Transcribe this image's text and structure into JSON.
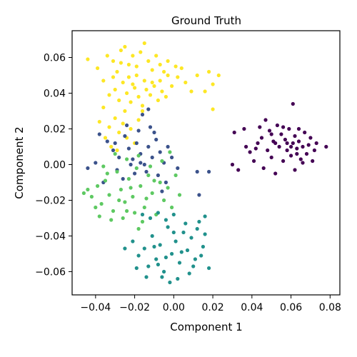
{
  "chart_data": {
    "type": "scatter",
    "title": "Ground Truth",
    "xlabel": "Component 1",
    "ylabel": "Component 2",
    "xlim": [
      -0.052,
      0.085
    ],
    "ylim": [
      -0.073,
      0.075
    ],
    "xticks": [
      -0.04,
      -0.02,
      0.0,
      0.02,
      0.04,
      0.06,
      0.08
    ],
    "xtick_labels": [
      "−0.04",
      "−0.02",
      "0.00",
      "0.02",
      "0.04",
      "0.06",
      "0.08"
    ],
    "yticks": [
      -0.06,
      -0.04,
      -0.02,
      0.0,
      0.02,
      0.04,
      0.06
    ],
    "ytick_labels": [
      "−0.06",
      "−0.04",
      "−0.02",
      "0.00",
      "0.02",
      "0.04",
      "0.06"
    ],
    "grid": false,
    "legend": "none",
    "series": [
      {
        "color": "#fde725",
        "points": [
          [
            -0.044,
            0.059
          ],
          [
            -0.039,
            0.054
          ],
          [
            -0.036,
            0.047
          ],
          [
            -0.034,
            0.061
          ],
          [
            -0.031,
            0.058
          ],
          [
            -0.029,
            0.052
          ],
          [
            -0.027,
            0.064
          ],
          [
            -0.025,
            0.066
          ],
          [
            -0.023,
            0.056
          ],
          [
            -0.021,
            0.061
          ],
          [
            -0.019,
            0.05
          ],
          [
            -0.017,
            0.063
          ],
          [
            -0.015,
            0.068
          ],
          [
            -0.013,
            0.058
          ],
          [
            -0.011,
            0.053
          ],
          [
            -0.009,
            0.061
          ],
          [
            -0.007,
            0.047
          ],
          [
            -0.005,
            0.052
          ],
          [
            -0.003,
            0.058
          ],
          [
            -0.001,
            0.044
          ],
          [
            0.002,
            0.049
          ],
          [
            0.004,
            0.054
          ],
          [
            0.006,
            0.046
          ],
          [
            0.009,
            0.041
          ],
          [
            0.012,
            0.05
          ],
          [
            0.016,
            0.041
          ],
          [
            0.02,
            0.045
          ],
          [
            0.023,
            0.05
          ],
          [
            0.02,
            0.031
          ],
          [
            0.018,
            0.052
          ],
          [
            -0.033,
            0.039
          ],
          [
            -0.03,
            0.042
          ],
          [
            -0.028,
            0.036
          ],
          [
            -0.026,
            0.046
          ],
          [
            -0.024,
            0.04
          ],
          [
            -0.022,
            0.035
          ],
          [
            -0.02,
            0.043
          ],
          [
            -0.018,
            0.038
          ],
          [
            -0.016,
            0.033
          ],
          [
            -0.014,
            0.042
          ],
          [
            -0.012,
            0.039
          ],
          [
            -0.01,
            0.044
          ],
          [
            -0.008,
            0.036
          ],
          [
            -0.006,
            0.041
          ],
          [
            -0.004,
            0.038
          ],
          [
            -0.036,
            0.032
          ],
          [
            -0.038,
            0.024
          ],
          [
            -0.033,
            0.021
          ],
          [
            -0.03,
            0.026
          ],
          [
            -0.028,
            0.018
          ],
          [
            -0.026,
            0.023
          ],
          [
            -0.024,
            0.015
          ],
          [
            -0.022,
            0.02
          ],
          [
            -0.02,
            0.012
          ],
          [
            -0.032,
            0.01
          ],
          [
            -0.029,
            0.008
          ],
          [
            -0.035,
            0.015
          ],
          [
            -0.018,
            0.025
          ],
          [
            -0.016,
            0.03
          ],
          [
            -0.025,
            0.03
          ],
          [
            -0.031,
            0.049
          ],
          [
            -0.027,
            0.057
          ],
          [
            -0.023,
            0.049
          ],
          [
            -0.019,
            0.055
          ],
          [
            -0.015,
            0.047
          ],
          [
            -0.011,
            0.046
          ],
          [
            -0.007,
            0.056
          ],
          [
            -0.003,
            0.05
          ],
          [
            0.001,
            0.055
          ],
          [
            -0.021,
            0.045
          ]
        ]
      },
      {
        "color": "#440154",
        "points": [
          [
            0.031,
            0.018
          ],
          [
            0.03,
            0.0
          ],
          [
            0.033,
            -0.003
          ],
          [
            0.036,
            0.02
          ],
          [
            0.039,
            0.007
          ],
          [
            0.041,
            0.002
          ],
          [
            0.043,
            0.012
          ],
          [
            0.045,
            0.015
          ],
          [
            0.046,
            -0.002
          ],
          [
            0.047,
            0.025
          ],
          [
            0.048,
            0.008
          ],
          [
            0.049,
            0.019
          ],
          [
            0.05,
            0.004
          ],
          [
            0.051,
            0.013
          ],
          [
            0.052,
            -0.005
          ],
          [
            0.053,
            0.022
          ],
          [
            0.054,
            0.01
          ],
          [
            0.055,
            0.017
          ],
          [
            0.056,
            0.002
          ],
          [
            0.057,
            0.014
          ],
          [
            0.058,
            0.008
          ],
          [
            0.059,
            0.02
          ],
          [
            0.06,
            0.005
          ],
          [
            0.061,
            0.012
          ],
          [
            0.062,
            0.016
          ],
          [
            0.062,
            -0.003
          ],
          [
            0.063,
            0.009
          ],
          [
            0.064,
            0.013
          ],
          [
            0.065,
            0.003
          ],
          [
            0.066,
            0.01
          ],
          [
            0.067,
            0.018
          ],
          [
            0.068,
            0.006
          ],
          [
            0.069,
            0.011
          ],
          [
            0.07,
            0.015
          ],
          [
            0.071,
            0.002
          ],
          [
            0.072,
            0.008
          ],
          [
            0.073,
            0.012
          ],
          [
            0.078,
            0.01
          ],
          [
            0.061,
            0.034
          ],
          [
            0.044,
            0.021
          ],
          [
            0.037,
            0.01
          ],
          [
            0.042,
            0.009
          ],
          [
            0.05,
            0.017
          ],
          [
            0.056,
            0.021
          ],
          [
            0.064,
            0.02
          ],
          [
            0.066,
            0.001
          ],
          [
            0.058,
            0.012
          ],
          [
            0.06,
            0.01
          ],
          [
            0.063,
            0.006
          ],
          [
            0.052,
            0.012
          ]
        ]
      },
      {
        "color": "#3b528b",
        "points": [
          [
            -0.038,
            0.017
          ],
          [
            -0.034,
            0.013
          ],
          [
            -0.031,
            0.008
          ],
          [
            -0.028,
            0.004
          ],
          [
            -0.025,
            0.016
          ],
          [
            -0.023,
            0.009
          ],
          [
            -0.021,
            0.003
          ],
          [
            -0.019,
            0.012
          ],
          [
            -0.017,
            0.006
          ],
          [
            -0.015,
            0.0
          ],
          [
            -0.013,
            0.01
          ],
          [
            -0.011,
            0.004
          ],
          [
            -0.009,
            0.014
          ],
          [
            -0.007,
            0.007
          ],
          [
            -0.005,
            0.001
          ],
          [
            -0.003,
            0.01
          ],
          [
            -0.001,
            0.004
          ],
          [
            0.002,
            -0.002
          ],
          [
            -0.024,
            0.022
          ],
          [
            -0.018,
            0.019
          ],
          [
            -0.012,
            0.021
          ],
          [
            -0.01,
            0.018
          ],
          [
            -0.029,
            -0.003
          ],
          [
            -0.026,
            -0.008
          ],
          [
            -0.02,
            -0.005
          ],
          [
            -0.014,
            -0.004
          ],
          [
            -0.008,
            -0.006
          ],
          [
            -0.004,
            -0.01
          ],
          [
            -0.04,
            0.001
          ],
          [
            -0.044,
            -0.002
          ],
          [
            -0.036,
            -0.01
          ],
          [
            -0.016,
            0.028
          ],
          [
            -0.013,
            0.031
          ],
          [
            0.012,
            -0.004
          ],
          [
            0.018,
            -0.004
          ],
          [
            0.013,
            -0.017
          ],
          [
            -0.006,
            -0.015
          ],
          [
            -0.022,
            0.0
          ],
          [
            -0.03,
            0.012
          ],
          [
            -0.017,
            0.001
          ]
        ]
      },
      {
        "color": "#5ec962",
        "points": [
          [
            -0.046,
            -0.016
          ],
          [
            -0.042,
            -0.018
          ],
          [
            -0.039,
            -0.012
          ],
          [
            -0.037,
            -0.022
          ],
          [
            -0.035,
            -0.009
          ],
          [
            -0.033,
            -0.017
          ],
          [
            -0.031,
            -0.026
          ],
          [
            -0.029,
            -0.004
          ],
          [
            -0.027,
            -0.014
          ],
          [
            -0.025,
            -0.021
          ],
          [
            -0.023,
            -0.008
          ],
          [
            -0.021,
            -0.018
          ],
          [
            -0.019,
            -0.002
          ],
          [
            -0.017,
            -0.012
          ],
          [
            -0.015,
            -0.024
          ],
          [
            -0.013,
            -0.006
          ],
          [
            -0.011,
            -0.016
          ],
          [
            -0.009,
            -0.028
          ],
          [
            -0.007,
            -0.01
          ],
          [
            -0.005,
            -0.02
          ],
          [
            -0.003,
            -0.013
          ],
          [
            -0.001,
            -0.024
          ],
          [
            0.001,
            -0.006
          ],
          [
            0.003,
            -0.017
          ],
          [
            -0.02,
            -0.027
          ],
          [
            -0.026,
            -0.03
          ],
          [
            -0.032,
            -0.031
          ],
          [
            -0.016,
            -0.032
          ],
          [
            -0.04,
            -0.024
          ],
          [
            -0.036,
            -0.001
          ],
          [
            -0.03,
            0.006
          ],
          [
            -0.024,
            0.003
          ],
          [
            -0.018,
            0.005
          ],
          [
            -0.012,
            -0.001
          ],
          [
            -0.006,
            0.002
          ],
          [
            -0.022,
            -0.013
          ],
          [
            -0.014,
            -0.019
          ],
          [
            -0.028,
            -0.02
          ],
          [
            -0.034,
            -0.005
          ],
          [
            -0.01,
            -0.009
          ],
          [
            -0.002,
            0.007
          ],
          [
            -0.038,
            -0.029
          ],
          [
            -0.044,
            -0.014
          ],
          [
            -0.018,
            -0.036
          ],
          [
            -0.024,
            -0.026
          ]
        ]
      },
      {
        "color": "#21918c",
        "points": [
          [
            -0.025,
            -0.047
          ],
          [
            -0.021,
            -0.043
          ],
          [
            -0.018,
            -0.051
          ],
          [
            -0.015,
            -0.047
          ],
          [
            -0.013,
            -0.057
          ],
          [
            -0.011,
            -0.04
          ],
          [
            -0.009,
            -0.053
          ],
          [
            -0.007,
            -0.045
          ],
          [
            -0.005,
            -0.06
          ],
          [
            -0.003,
            -0.035
          ],
          [
            -0.001,
            -0.05
          ],
          [
            0.001,
            -0.043
          ],
          [
            0.003,
            -0.055
          ],
          [
            0.005,
            -0.038
          ],
          [
            0.007,
            -0.048
          ],
          [
            0.009,
            -0.041
          ],
          [
            0.011,
            -0.053
          ],
          [
            0.013,
            -0.032
          ],
          [
            0.015,
            -0.046
          ],
          [
            0.016,
            -0.039
          ],
          [
            0.018,
            -0.058
          ],
          [
            0.002,
            -0.064
          ],
          [
            -0.002,
            -0.066
          ],
          [
            0.008,
            -0.061
          ],
          [
            0.012,
            -0.036
          ],
          [
            -0.012,
            -0.03
          ],
          [
            -0.008,
            -0.027
          ],
          [
            -0.004,
            -0.031
          ],
          [
            0.0,
            -0.028
          ],
          [
            0.006,
            -0.033
          ],
          [
            -0.019,
            -0.058
          ],
          [
            -0.014,
            -0.063
          ],
          [
            -0.006,
            -0.063
          ],
          [
            -0.016,
            -0.028
          ],
          [
            -0.01,
            -0.046
          ],
          [
            -0.004,
            -0.052
          ],
          [
            0.004,
            -0.049
          ],
          [
            0.01,
            -0.057
          ],
          [
            0.014,
            -0.051
          ],
          [
            -0.008,
            -0.056
          ],
          [
            0.0,
            -0.038
          ],
          [
            0.016,
            -0.029
          ]
        ]
      }
    ]
  }
}
